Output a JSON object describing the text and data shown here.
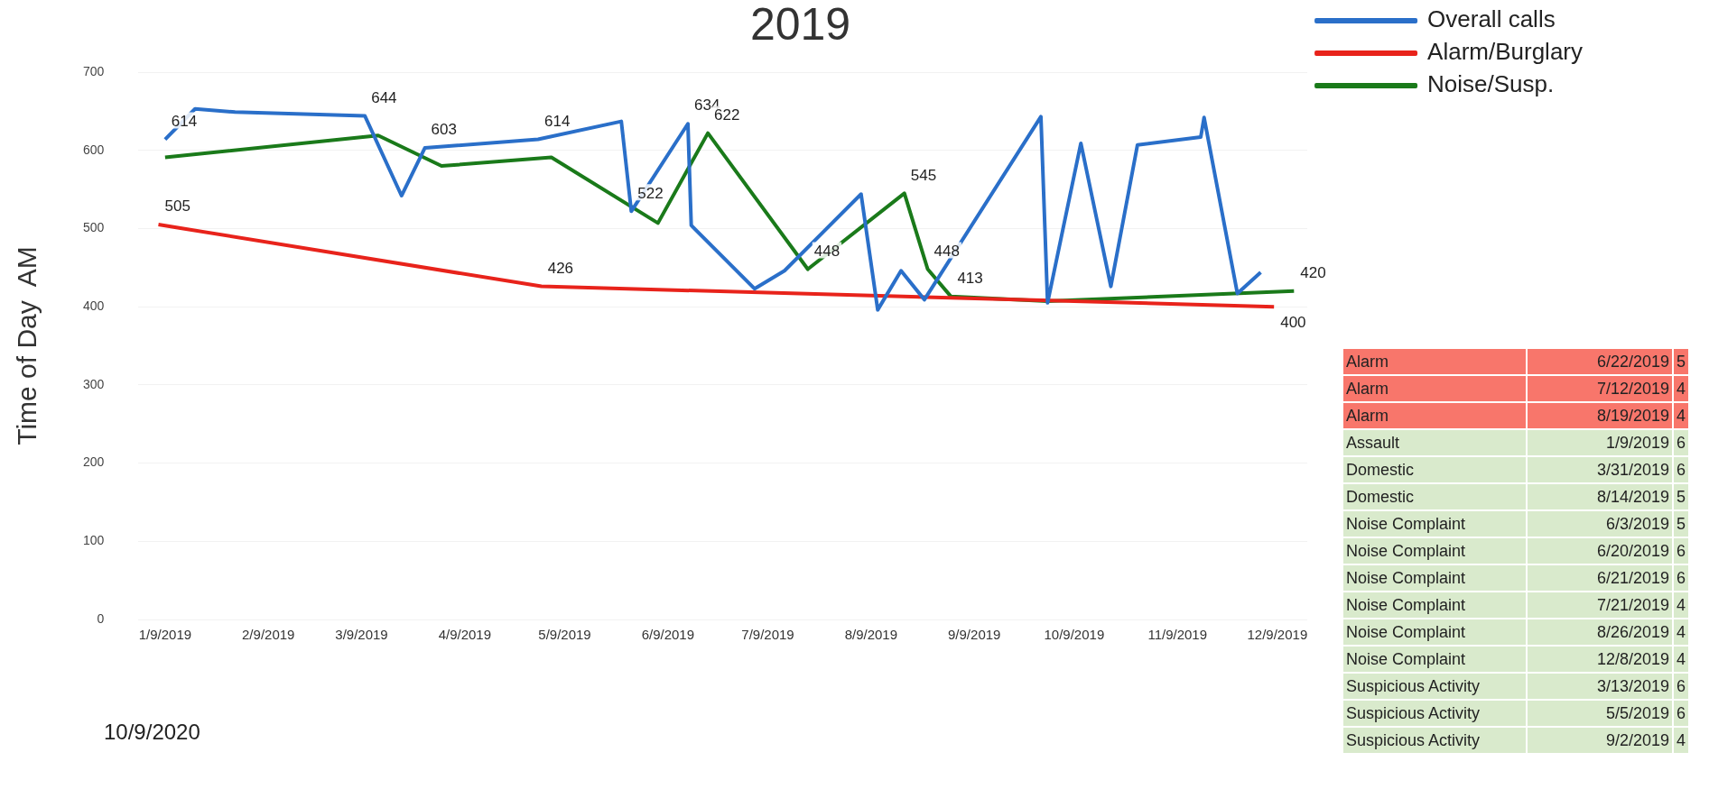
{
  "chart_data": [
    {
      "type": "line",
      "title": "2019",
      "ylabel": "Time of Day  AM",
      "xlim": [
        "2019-01-01",
        "2019-12-18"
      ],
      "ylim": [
        0,
        700
      ],
      "yticks": [
        0,
        100,
        200,
        300,
        400,
        500,
        600,
        700
      ],
      "xticks": [
        {
          "value": "2019-01-09",
          "label": "1/9/2019"
        },
        {
          "value": "2019-02-09",
          "label": "2/9/2019"
        },
        {
          "value": "2019-03-09",
          "label": "3/9/2019"
        },
        {
          "value": "2019-04-09",
          "label": "4/9/2019"
        },
        {
          "value": "2019-05-09",
          "label": "5/9/2019"
        },
        {
          "value": "2019-06-09",
          "label": "6/9/2019"
        },
        {
          "value": "2019-07-09",
          "label": "7/9/2019"
        },
        {
          "value": "2019-08-09",
          "label": "8/9/2019"
        },
        {
          "value": "2019-09-09",
          "label": "9/9/2019"
        },
        {
          "value": "2019-10-09",
          "label": "10/9/2019"
        },
        {
          "value": "2019-11-09",
          "label": "11/9/2019"
        },
        {
          "value": "2019-12-09",
          "label": "12/9/2019"
        }
      ],
      "grid": "y",
      "legend": "top right",
      "annotations": [
        "10/9/2020"
      ],
      "series": [
        {
          "name": "Overall calls",
          "color": "#2a6fc9",
          "x": [
            "2019-01-09",
            "2019-01-18",
            "2019-01-30",
            "2019-03-10",
            "2019-03-21",
            "2019-03-28",
            "2019-05-01",
            "2019-05-26",
            "2019-05-29",
            "2019-06-15",
            "2019-06-16",
            "2019-07-05",
            "2019-07-14",
            "2019-08-06",
            "2019-08-11",
            "2019-08-18",
            "2019-08-25",
            "2019-09-29",
            "2019-10-01",
            "2019-10-11",
            "2019-10-20",
            "2019-10-28",
            "2019-11-16",
            "2019-11-17",
            "2019-11-27",
            "2019-12-04"
          ],
          "values": [
            614,
            653,
            649,
            644,
            542,
            603,
            614,
            637,
            522,
            634,
            504,
            423,
            446,
            544,
            396,
            446,
            409,
            643,
            405,
            609,
            426,
            607,
            617,
            642,
            417,
            444
          ],
          "value_labels": [
            "614",
            null,
            null,
            "644",
            null,
            "603",
            "614",
            null,
            "522",
            "634",
            null,
            null,
            null,
            null,
            null,
            null,
            null,
            null,
            null,
            null,
            null,
            null,
            null,
            null,
            null,
            null
          ]
        },
        {
          "name": "Alarm/Burglary",
          "color": "#e8231b",
          "x": [
            "2019-01-07",
            "2019-05-02",
            "2019-12-08"
          ],
          "values": [
            505,
            426,
            400
          ],
          "value_labels": [
            "505",
            "426",
            "400"
          ]
        },
        {
          "name": "Noise/Susp.",
          "color": "#1a7a1a",
          "x": [
            "2019-01-09",
            "2019-03-14",
            "2019-04-02",
            "2019-05-05",
            "2019-06-06",
            "2019-06-21",
            "2019-07-21",
            "2019-08-19",
            "2019-08-26",
            "2019-09-02",
            "2019-10-01",
            "2019-12-14"
          ],
          "values": [
            591,
            619,
            580,
            591,
            507,
            622,
            448,
            545,
            448,
            413,
            407,
            420
          ],
          "value_labels": [
            null,
            null,
            null,
            null,
            null,
            "622",
            "448",
            "545",
            "448",
            "413",
            null,
            "420"
          ]
        }
      ]
    },
    {
      "type": "other",
      "colors": [
        "#f8766b",
        "#f8766b",
        "#f8766b",
        "#d9eacc",
        "#d9eacc",
        "#d9eacc",
        "#d9eacc",
        "#d9eacc",
        "#d9eacc",
        "#d9eacc",
        "#d9eacc",
        "#d9eacc",
        "#d9eacc",
        "#d9eacc",
        "#d9eacc"
      ],
      "annotations": [
        "Alarm",
        "6/22/2019",
        "5",
        "Alarm",
        "7/12/2019",
        "4",
        "Alarm",
        "8/19/2019",
        "4",
        "Assault",
        "1/9/2019",
        "6",
        "Domestic",
        "3/31/2019",
        "6",
        "Domestic",
        "8/14/2019",
        "5",
        "Noise Complaint",
        "6/3/2019",
        "5",
        "Noise Complaint",
        "6/20/2019",
        "6",
        "Noise Complaint",
        "6/21/2019",
        "6",
        "Noise Complaint",
        "7/21/2019",
        "4",
        "Noise Complaint",
        "8/26/2019",
        "4",
        "Noise Complaint",
        "12/8/2019",
        "4",
        "Suspicious Activity",
        "3/13/2019",
        "6",
        "Suspicious Activity",
        "5/5/2019",
        "6",
        "Suspicious Activity",
        "9/2/2019",
        "4"
      ]
    }
  ]
}
